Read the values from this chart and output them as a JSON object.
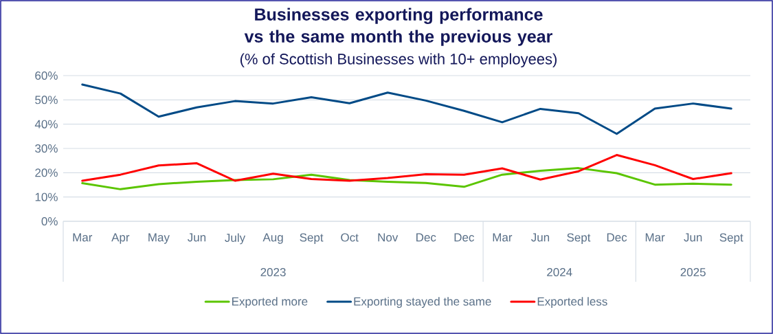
{
  "chart_data": {
    "type": "line",
    "title": "Businesses exporting performance vs the same month the previous year",
    "subtitle": "(% of Scottish Businesses with 10+ employees)",
    "categories": [
      "Mar",
      "Apr",
      "May",
      "Jun",
      "July",
      "Aug",
      "Sept",
      "Oct",
      "Nov",
      "Dec",
      "Dec",
      "Mar",
      "Jun",
      "Sept",
      "Dec",
      "Mar",
      "Jun",
      "Sept"
    ],
    "annotations": [
      "2023",
      "2024",
      "2025"
    ],
    "series": [
      {
        "name": "Exported more",
        "color": "#5bc500",
        "values": [
          15.7,
          13.2,
          15.3,
          16.3,
          17.0,
          17.3,
          19.2,
          17.0,
          16.3,
          15.8,
          14.2,
          19.2,
          20.8,
          21.9,
          19.8,
          15.1,
          15.5,
          15.1
        ]
      },
      {
        "name": "Exporting stayed the same",
        "color": "#004a86",
        "values": [
          56.3,
          52.6,
          43.1,
          46.9,
          49.5,
          48.5,
          51.1,
          48.6,
          53.0,
          49.7,
          45.5,
          40.8,
          46.3,
          44.5,
          36.0,
          46.4,
          48.5,
          46.4
        ]
      },
      {
        "name": "Exported less",
        "color": "#ff0000",
        "values": [
          16.7,
          19.2,
          23.0,
          23.9,
          16.7,
          19.6,
          17.4,
          16.7,
          17.8,
          19.4,
          19.2,
          21.8,
          17.2,
          20.6,
          27.3,
          23.1,
          17.4,
          19.8
        ]
      }
    ],
    "ylim": [
      0,
      60
    ],
    "yticks": [
      {
        "value": 0,
        "label": "0%"
      },
      {
        "value": 10,
        "label": "10%"
      },
      {
        "value": 20,
        "label": "20%"
      },
      {
        "value": 30,
        "label": "30%"
      },
      {
        "value": 40,
        "label": "40%"
      },
      {
        "value": 50,
        "label": "50%"
      },
      {
        "value": 60,
        "label": "60%"
      }
    ],
    "grid": "y",
    "legend": "bottom",
    "marker": "none",
    "line_style": "solid"
  }
}
